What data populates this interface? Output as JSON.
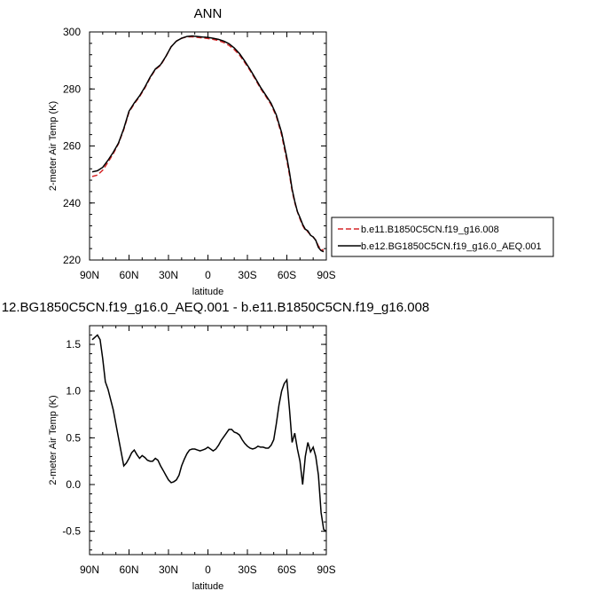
{
  "chart_data": [
    {
      "type": "line",
      "title": "ANN",
      "xlabel": "latitude",
      "ylabel": "2-meter Air Temp (K)",
      "x_tick_labels": [
        "90N",
        "60N",
        "30N",
        "0",
        "30S",
        "60S",
        "90S"
      ],
      "x_tick_values": [
        90,
        60,
        30,
        0,
        -30,
        -60,
        -90
      ],
      "xlim": [
        90,
        -90
      ],
      "ylim": [
        220,
        300
      ],
      "y_tick_values": [
        220,
        240,
        260,
        280,
        300
      ],
      "y_tick_labels": [
        "220",
        "240",
        "260",
        "280",
        "300"
      ],
      "legend": "right",
      "series": [
        {
          "name": "b.e11.B1850C5CN.f19_g16.008",
          "color": "#d62728",
          "dash": "dashed",
          "x": [
            88,
            84,
            80,
            76,
            72,
            68,
            64,
            60,
            56,
            52,
            48,
            44,
            40,
            36,
            32,
            28,
            24,
            20,
            16,
            12,
            8,
            4,
            0,
            -4,
            -8,
            -12,
            -16,
            -20,
            -24,
            -28,
            -32,
            -36,
            -40,
            -44,
            -48,
            -52,
            -56,
            -60,
            -62,
            -64,
            -66,
            -68,
            -70,
            -72,
            -74,
            -76,
            -78,
            -80,
            -82,
            -84,
            -86,
            -88
          ],
          "y": [
            249.3,
            249.8,
            251.5,
            254.3,
            257.3,
            260.8,
            265.8,
            271.9,
            274.8,
            277.3,
            280.3,
            283.8,
            286.8,
            288.3,
            291.3,
            294.8,
            296.8,
            297.8,
            298.3,
            298.3,
            298.1,
            297.9,
            297.7,
            297.4,
            297.0,
            296.3,
            295.3,
            293.8,
            291.9,
            289.3,
            286.5,
            283.4,
            280.2,
            277.4,
            274.5,
            270.4,
            263.9,
            254.9,
            249.8,
            244.3,
            240.1,
            236.9,
            234.4,
            232.1,
            230.5,
            229.9,
            228.8,
            228.1,
            226.9,
            224.9,
            223.8,
            223.4
          ]
        },
        {
          "name": "b.e12.BG1850C5CN.f19_g16.0_AEQ.001",
          "color": "#000000",
          "dash": "solid",
          "x": [
            88,
            84,
            80,
            76,
            72,
            68,
            64,
            60,
            56,
            52,
            48,
            44,
            40,
            36,
            32,
            28,
            24,
            20,
            16,
            12,
            8,
            4,
            0,
            -4,
            -8,
            -12,
            -16,
            -20,
            -24,
            -28,
            -32,
            -36,
            -40,
            -44,
            -48,
            -52,
            -56,
            -60,
            -62,
            -64,
            -66,
            -68,
            -70,
            -72,
            -74,
            -76,
            -78,
            -80,
            -82,
            -84,
            -86,
            -88
          ],
          "y": [
            250.9,
            251.3,
            252.5,
            255.0,
            257.8,
            261.0,
            266.1,
            272.2,
            275.1,
            277.6,
            280.6,
            284.1,
            287.0,
            288.5,
            291.4,
            294.8,
            296.8,
            297.8,
            298.4,
            298.6,
            298.4,
            298.2,
            298.1,
            297.8,
            297.4,
            296.8,
            295.9,
            294.4,
            292.4,
            289.8,
            286.9,
            283.8,
            280.6,
            277.8,
            275.0,
            270.9,
            264.7,
            255.9,
            250.7,
            244.9,
            240.6,
            237.0,
            234.9,
            232.5,
            230.8,
            230.2,
            228.7,
            228.1,
            226.9,
            224.4,
            223.3,
            222.9
          ]
        }
      ]
    },
    {
      "type": "line",
      "title": "12.BG1850C5CN.f19_g16.0_AEQ.001 - b.e11.B1850C5CN.f19_g16.008",
      "xlabel": "latitude",
      "ylabel": "2-meter Air Temp (K)",
      "x_tick_labels": [
        "90N",
        "60N",
        "30N",
        "0",
        "30S",
        "60S",
        "90S"
      ],
      "x_tick_values": [
        90,
        60,
        30,
        0,
        -30,
        -60,
        -90
      ],
      "xlim": [
        90,
        -90
      ],
      "ylim": [
        -0.75,
        1.7
      ],
      "y_tick_values": [
        -0.5,
        0.0,
        0.5,
        1.0,
        1.5
      ],
      "y_tick_labels": [
        "-0.5",
        "0.0",
        "0.5",
        "1.0",
        "1.5"
      ],
      "series": [
        {
          "color": "#000000",
          "dash": "solid",
          "x": [
            88,
            84,
            82,
            80,
            78,
            76,
            72,
            68,
            64,
            62,
            60,
            58,
            56,
            54,
            52,
            50,
            48,
            46,
            44,
            42,
            40,
            38,
            36,
            34,
            32,
            30,
            28,
            26,
            24,
            22,
            20,
            18,
            16,
            14,
            12,
            10,
            8,
            6,
            4,
            2,
            0,
            -2,
            -4,
            -6,
            -8,
            -10,
            -12,
            -14,
            -16,
            -18,
            -20,
            -22,
            -24,
            -26,
            -28,
            -30,
            -32,
            -34,
            -36,
            -38,
            -40,
            -42,
            -44,
            -46,
            -48,
            -50,
            -52,
            -54,
            -56,
            -58,
            -60,
            -62,
            -64,
            -66,
            -68,
            -70,
            -72,
            -74,
            -76,
            -78,
            -80,
            -82,
            -84,
            -86,
            -88,
            -90
          ],
          "y": [
            1.55,
            1.6,
            1.55,
            1.35,
            1.1,
            1.02,
            0.8,
            0.5,
            0.2,
            0.23,
            0.28,
            0.34,
            0.37,
            0.32,
            0.28,
            0.31,
            0.29,
            0.26,
            0.25,
            0.25,
            0.28,
            0.26,
            0.2,
            0.15,
            0.1,
            0.05,
            0.02,
            0.03,
            0.05,
            0.1,
            0.2,
            0.27,
            0.33,
            0.37,
            0.38,
            0.38,
            0.37,
            0.36,
            0.37,
            0.38,
            0.4,
            0.38,
            0.36,
            0.38,
            0.42,
            0.47,
            0.51,
            0.55,
            0.59,
            0.59,
            0.56,
            0.55,
            0.53,
            0.48,
            0.44,
            0.41,
            0.39,
            0.38,
            0.39,
            0.41,
            0.4,
            0.4,
            0.39,
            0.39,
            0.42,
            0.48,
            0.65,
            0.85,
            1.0,
            1.08,
            1.12,
            0.8,
            0.45,
            0.55,
            0.38,
            0.25,
            0.0,
            0.3,
            0.45,
            0.35,
            0.4,
            0.3,
            0.1,
            -0.3,
            -0.48,
            -0.5
          ]
        }
      ]
    }
  ]
}
